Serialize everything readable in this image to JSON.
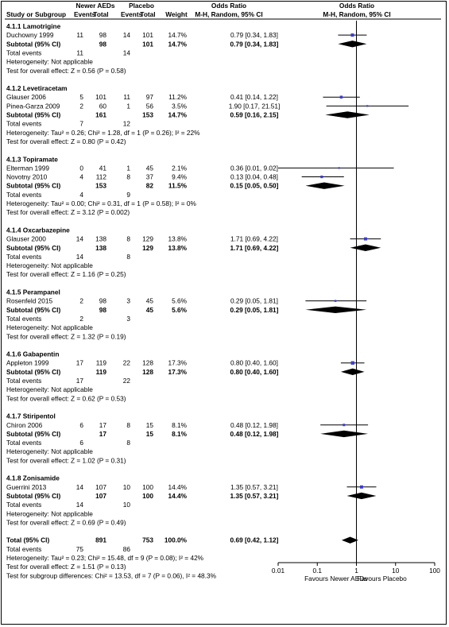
{
  "header": {
    "group_newer": "Newer AEDs",
    "group_placebo": "Placebo",
    "col_or_title": "Odds Ratio",
    "col_or_sub": "M-H, Random, 95% CI",
    "plot_or_title": "Odds Ratio",
    "plot_or_sub": "M-H, Random, 95% CI",
    "col_study": "Study or Subgroup",
    "col_events_n": "Events",
    "col_total_n": "Total",
    "col_events_p": "Events",
    "col_total_p": "Total",
    "col_weight": "Weight",
    "col_or": "M-H, Random, 95% CI"
  },
  "colors": {
    "marker": "#3b3bd6",
    "ink": "#000000"
  },
  "chart_data": {
    "type": "forest",
    "x_scale": "log",
    "xlim": [
      0.01,
      100
    ],
    "ticks": [
      "0.01",
      "0.1",
      "1",
      "10",
      "100"
    ],
    "tick_values": [
      0.01,
      0.1,
      1,
      10,
      100
    ],
    "favours_left": "Favours Newer AEDs",
    "favours_right": "Favours Placebo",
    "rows": [
      {
        "type": "heading",
        "label": "4.1.1 Lamotrigine"
      },
      {
        "type": "study",
        "label": "Duchowny 1999",
        "e1": "11",
        "n1": "98",
        "e2": "14",
        "n2": "101",
        "weight": "14.7%",
        "ci": "0.79 [0.34, 1.83]",
        "or": 0.79,
        "lo": 0.34,
        "hi": 1.83
      },
      {
        "type": "subtotal",
        "label": "Subtotal (95% CI)",
        "n1": "98",
        "n2": "101",
        "weight": "14.7%",
        "ci": "0.79 [0.34, 1.83]",
        "or": 0.79,
        "lo": 0.34,
        "hi": 1.83
      },
      {
        "type": "text",
        "label": "Total events",
        "e1": "11",
        "e2": "14"
      },
      {
        "type": "text",
        "label": "Heterogeneity: Not applicable"
      },
      {
        "type": "text",
        "label": "Test for overall effect: Z = 0.56 (P = 0.58)"
      },
      {
        "type": "blank"
      },
      {
        "type": "heading",
        "label": "4.1.2 Levetiracetam"
      },
      {
        "type": "study",
        "label": "Glauser 2006",
        "e1": "5",
        "n1": "101",
        "e2": "11",
        "n2": "97",
        "weight": "11.2%",
        "ci": "0.41 [0.14, 1.22]",
        "or": 0.41,
        "lo": 0.14,
        "hi": 1.22
      },
      {
        "type": "study",
        "label": "Pinea-Garza 2009",
        "e1": "2",
        "n1": "60",
        "e2": "1",
        "n2": "56",
        "weight": "3.5%",
        "ci": "1.90 [0.17, 21.51]",
        "or": 1.9,
        "lo": 0.17,
        "hi": 21.51
      },
      {
        "type": "subtotal",
        "label": "Subtotal (95% CI)",
        "n1": "161",
        "n2": "153",
        "weight": "14.7%",
        "ci": "0.59 [0.16, 2.15]",
        "or": 0.59,
        "lo": 0.16,
        "hi": 2.15
      },
      {
        "type": "text",
        "label": "Total events",
        "e1": "7",
        "e2": "12"
      },
      {
        "type": "text",
        "label": "Heterogeneity: Tau² = 0.26; Chi² = 1.28, df = 1 (P = 0.26); I² = 22%"
      },
      {
        "type": "text",
        "label": "Test for overall effect: Z = 0.80 (P = 0.42)"
      },
      {
        "type": "blank"
      },
      {
        "type": "heading",
        "label": "4.1.3 Topiramate"
      },
      {
        "type": "study",
        "label": "Elterman 1999",
        "e1": "0",
        "n1": "41",
        "e2": "1",
        "n2": "45",
        "weight": "2.1%",
        "ci": "0.36 [0.01, 9.02]",
        "or": 0.36,
        "lo": 0.01,
        "hi": 9.02
      },
      {
        "type": "study",
        "label": "Novotny 2010",
        "e1": "4",
        "n1": "112",
        "e2": "8",
        "n2": "37",
        "weight": "9.4%",
        "ci": "0.13 [0.04, 0.48]",
        "or": 0.13,
        "lo": 0.04,
        "hi": 0.48
      },
      {
        "type": "subtotal",
        "label": "Subtotal (95% CI)",
        "n1": "153",
        "n2": "82",
        "weight": "11.5%",
        "ci": "0.15 [0.05, 0.50]",
        "or": 0.15,
        "lo": 0.05,
        "hi": 0.5
      },
      {
        "type": "text",
        "label": "Total events",
        "e1": "4",
        "e2": "9"
      },
      {
        "type": "text",
        "label": "Heterogeneity: Tau² = 0.00; Chi² = 0.31, df = 1 (P = 0.58); I² = 0%"
      },
      {
        "type": "text",
        "label": "Test for overall effect: Z = 3.12 (P = 0.002)"
      },
      {
        "type": "blank"
      },
      {
        "type": "heading",
        "label": "4.1.4 Oxcarbazepine"
      },
      {
        "type": "study",
        "label": "Glauser 2000",
        "e1": "14",
        "n1": "138",
        "e2": "8",
        "n2": "129",
        "weight": "13.8%",
        "ci": "1.71 [0.69, 4.22]",
        "or": 1.71,
        "lo": 0.69,
        "hi": 4.22
      },
      {
        "type": "subtotal",
        "label": "Subtotal (95% CI)",
        "n1": "138",
        "n2": "129",
        "weight": "13.8%",
        "ci": "1.71 [0.69, 4.22]",
        "or": 1.71,
        "lo": 0.69,
        "hi": 4.22
      },
      {
        "type": "text",
        "label": "Total events",
        "e1": "14",
        "e2": "8"
      },
      {
        "type": "text",
        "label": "Heterogeneity: Not applicable"
      },
      {
        "type": "text",
        "label": "Test for overall effect: Z = 1.16 (P = 0.25)"
      },
      {
        "type": "blank"
      },
      {
        "type": "heading",
        "label": "4.1.5 Perampanel"
      },
      {
        "type": "study",
        "label": "Rosenfeld 2015",
        "e1": "2",
        "n1": "98",
        "e2": "3",
        "n2": "45",
        "weight": "5.6%",
        "ci": "0.29 [0.05, 1.81]",
        "or": 0.29,
        "lo": 0.05,
        "hi": 1.81
      },
      {
        "type": "subtotal",
        "label": "Subtotal (95% CI)",
        "n1": "98",
        "n2": "45",
        "weight": "5.6%",
        "ci": "0.29 [0.05, 1.81]",
        "or": 0.29,
        "lo": 0.05,
        "hi": 1.81
      },
      {
        "type": "text",
        "label": "Total events",
        "e1": "2",
        "e2": "3"
      },
      {
        "type": "text",
        "label": "Heterogeneity: Not applicable"
      },
      {
        "type": "text",
        "label": "Test for overall effect: Z = 1.32 (P = 0.19)"
      },
      {
        "type": "blank"
      },
      {
        "type": "heading",
        "label": "4.1.6 Gabapentin"
      },
      {
        "type": "study",
        "label": "Appleton 1999",
        "e1": "17",
        "n1": "119",
        "e2": "22",
        "n2": "128",
        "weight": "17.3%",
        "ci": "0.80 [0.40, 1.60]",
        "or": 0.8,
        "lo": 0.4,
        "hi": 1.6
      },
      {
        "type": "subtotal",
        "label": "Subtotal (95% CI)",
        "n1": "119",
        "n2": "128",
        "weight": "17.3%",
        "ci": "0.80 [0.40, 1.60]",
        "or": 0.8,
        "lo": 0.4,
        "hi": 1.6
      },
      {
        "type": "text",
        "label": "Total events",
        "e1": "17",
        "e2": "22"
      },
      {
        "type": "text",
        "label": "Heterogeneity: Not applicable"
      },
      {
        "type": "text",
        "label": "Test for overall effect: Z = 0.62 (P = 0.53)"
      },
      {
        "type": "blank"
      },
      {
        "type": "heading",
        "label": "4.1.7 Stiripentol"
      },
      {
        "type": "study",
        "label": "Chiron 2006",
        "e1": "6",
        "n1": "17",
        "e2": "8",
        "n2": "15",
        "weight": "8.1%",
        "ci": "0.48 [0.12, 1.98]",
        "or": 0.48,
        "lo": 0.12,
        "hi": 1.98
      },
      {
        "type": "subtotal",
        "label": "Subtotal (95% CI)",
        "n1": "17",
        "n2": "15",
        "weight": "8.1%",
        "ci": "0.48 [0.12, 1.98]",
        "or": 0.48,
        "lo": 0.12,
        "hi": 1.98
      },
      {
        "type": "text",
        "label": "Total events",
        "e1": "6",
        "e2": "8"
      },
      {
        "type": "text",
        "label": "Heterogeneity: Not applicable"
      },
      {
        "type": "text",
        "label": "Test for overall effect: Z = 1.02 (P = 0.31)"
      },
      {
        "type": "blank"
      },
      {
        "type": "heading",
        "label": "4.1.8 Zonisamide"
      },
      {
        "type": "study",
        "label": "Guerrini 2013",
        "e1": "14",
        "n1": "107",
        "e2": "10",
        "n2": "100",
        "weight": "14.4%",
        "ci": "1.35 [0.57, 3.21]",
        "or": 1.35,
        "lo": 0.57,
        "hi": 3.21
      },
      {
        "type": "subtotal",
        "label": "Subtotal (95% CI)",
        "n1": "107",
        "n2": "100",
        "weight": "14.4%",
        "ci": "1.35 [0.57, 3.21]",
        "or": 1.35,
        "lo": 0.57,
        "hi": 3.21
      },
      {
        "type": "text",
        "label": "Total events",
        "e1": "14",
        "e2": "10"
      },
      {
        "type": "text",
        "label": "Heterogeneity: Not applicable"
      },
      {
        "type": "text",
        "label": "Test for overall effect: Z = 0.69 (P = 0.49)"
      },
      {
        "type": "blank"
      },
      {
        "type": "total",
        "label": "Total (95% CI)",
        "n1": "891",
        "n2": "753",
        "weight": "100.0%",
        "ci": "0.69 [0.42, 1.12]",
        "or": 0.69,
        "lo": 0.42,
        "hi": 1.12
      },
      {
        "type": "text",
        "label": "Total events",
        "e1": "75",
        "e2": "86"
      },
      {
        "type": "text",
        "label": "Heterogeneity: Tau² = 0.23; Chi² = 15.48, df = 9 (P = 0.08); I² = 42%"
      },
      {
        "type": "text",
        "label": "Test for overall effect: Z = 1.51 (P = 0.13)"
      },
      {
        "type": "text",
        "label": "Test for subgroup differences: Chi² = 13.53, df = 7 (P = 0.06), I² = 48.3%"
      }
    ]
  }
}
